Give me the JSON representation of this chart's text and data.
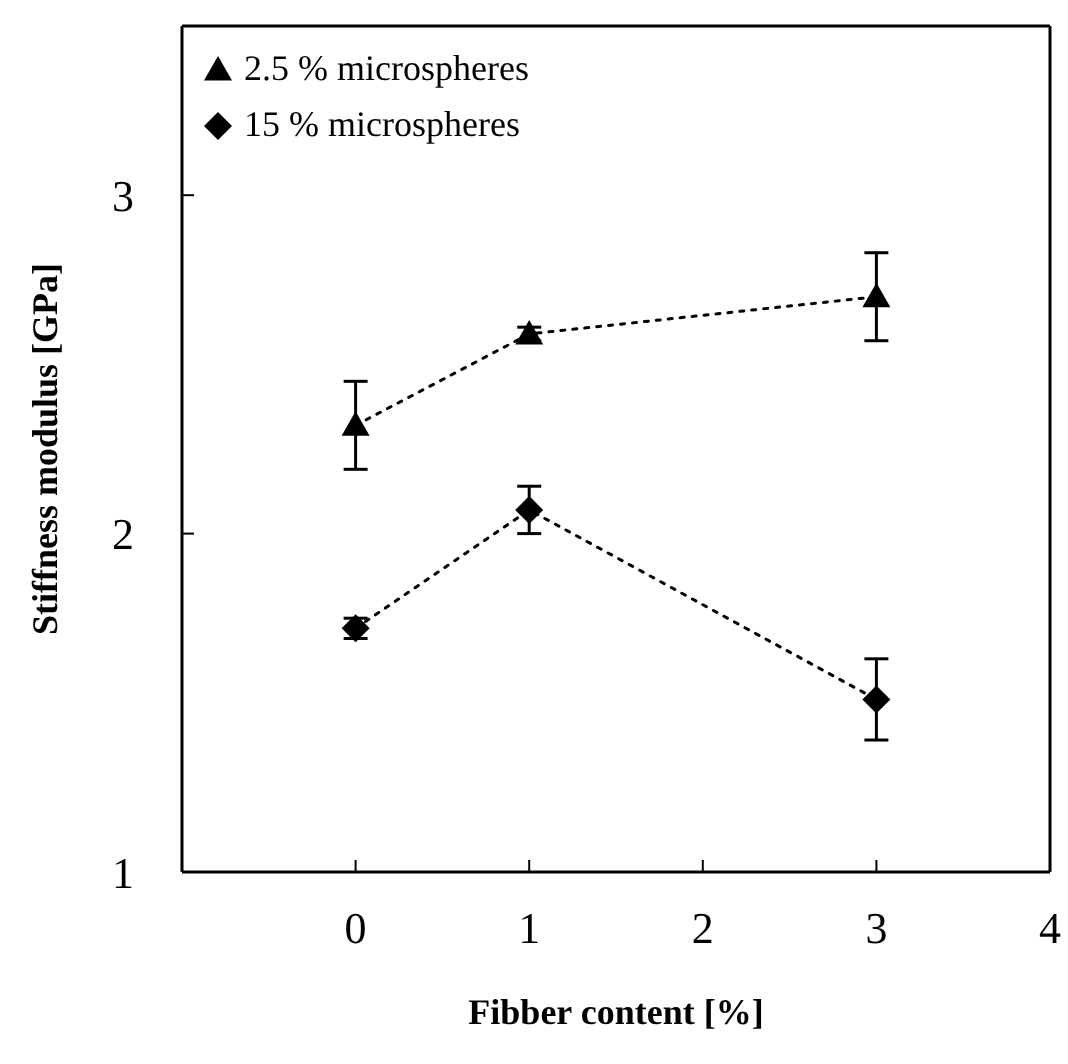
{
  "chart_data": {
    "type": "line",
    "xlabel": "Fibber content [%]",
    "ylabel": "Stiffness  modulus [GPa]",
    "x": [
      0,
      1,
      3
    ],
    "series": [
      {
        "name": "2.5 % microspheres",
        "color": "#000000",
        "marker": "triangle",
        "values": [
          2.32,
          2.59,
          2.7
        ],
        "errors": [
          0.13,
          0.02,
          0.13
        ]
      },
      {
        "name": "15 % microspheres",
        "color": "#000000",
        "marker": "diamond",
        "values": [
          1.72,
          2.07,
          1.51
        ],
        "errors": [
          0.03,
          0.07,
          0.12
        ]
      }
    ],
    "xlim": [
      -1,
      4
    ],
    "xticks": [
      0,
      1,
      2,
      3,
      4
    ],
    "ylim": [
      1,
      3.5
    ],
    "yticks": [
      1,
      2,
      3
    ],
    "grid": false,
    "legend": "top left",
    "line_style": "dotted"
  }
}
